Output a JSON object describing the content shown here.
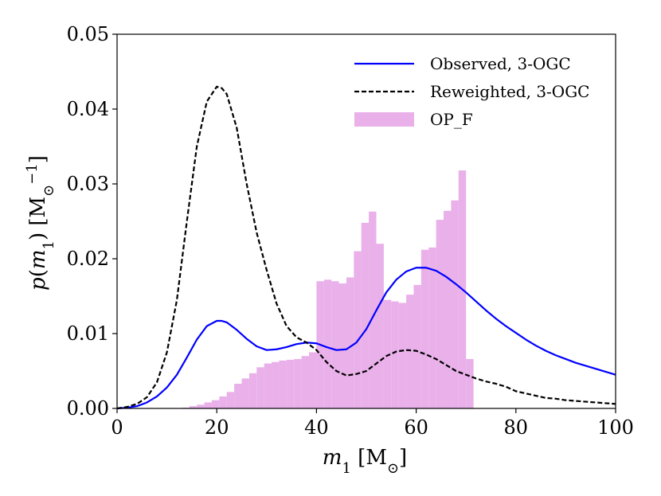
{
  "chart_data": {
    "type": "line",
    "xlabel": "m1 [M⊙]",
    "ylabel": "p(m1) [M⊙^-1]",
    "xlim": [
      0,
      100
    ],
    "ylim": [
      0,
      0.05
    ],
    "xticks": [
      0,
      20,
      40,
      60,
      80,
      100
    ],
    "yticks": [
      0.0,
      0.01,
      0.02,
      0.03,
      0.04,
      0.05
    ],
    "xtick_labels": [
      "0",
      "20",
      "40",
      "60",
      "80",
      "100"
    ],
    "ytick_labels": [
      "0.00",
      "0.01",
      "0.02",
      "0.03",
      "0.04",
      "0.05"
    ],
    "grid": false,
    "legend_position": "top-right",
    "series": [
      {
        "name": "Observed, 3-OGC",
        "type": "line",
        "style": "solid",
        "color": "#0000ff",
        "x": [
          0,
          2,
          4,
          6,
          8,
          10,
          12,
          14,
          16,
          18,
          20,
          21,
          22,
          24,
          26,
          28,
          30,
          32,
          34,
          36,
          38,
          40,
          42,
          44,
          46,
          48,
          50,
          52,
          54,
          56,
          58,
          60,
          62,
          64,
          66,
          68,
          70,
          72,
          74,
          76,
          78,
          80,
          82,
          84,
          86,
          88,
          90,
          92,
          94,
          96,
          98,
          100
        ],
        "y": [
          0.0,
          0.0001,
          0.0003,
          0.0008,
          0.0016,
          0.0028,
          0.0045,
          0.0068,
          0.0092,
          0.011,
          0.0117,
          0.0117,
          0.0115,
          0.0105,
          0.0093,
          0.0083,
          0.0078,
          0.0079,
          0.0082,
          0.0086,
          0.0088,
          0.0087,
          0.0082,
          0.0078,
          0.0079,
          0.0088,
          0.0106,
          0.0131,
          0.0155,
          0.0172,
          0.0183,
          0.0188,
          0.0188,
          0.0184,
          0.0176,
          0.0166,
          0.0155,
          0.0143,
          0.0131,
          0.012,
          0.011,
          0.0101,
          0.0092,
          0.0084,
          0.0077,
          0.0071,
          0.0066,
          0.0061,
          0.0057,
          0.0053,
          0.0049,
          0.0045
        ]
      },
      {
        "name": "Reweighted, 3-OGC",
        "type": "line",
        "style": "dashed",
        "color": "#000000",
        "x": [
          0,
          2,
          4,
          6,
          8,
          10,
          12,
          14,
          16,
          18,
          20,
          21,
          22,
          24,
          26,
          28,
          30,
          32,
          34,
          36,
          38,
          40,
          42,
          44,
          46,
          48,
          50,
          52,
          54,
          56,
          58,
          60,
          62,
          64,
          66,
          68,
          70,
          72,
          74,
          76,
          78,
          80,
          82,
          84,
          86,
          88,
          90,
          92,
          94,
          96,
          98,
          100
        ],
        "y": [
          0.0,
          0.0002,
          0.0006,
          0.0015,
          0.0035,
          0.0075,
          0.0145,
          0.025,
          0.035,
          0.041,
          0.043,
          0.0428,
          0.042,
          0.0375,
          0.03,
          0.0235,
          0.0185,
          0.014,
          0.011,
          0.0095,
          0.0088,
          0.0078,
          0.0062,
          0.005,
          0.0044,
          0.0046,
          0.005,
          0.006,
          0.007,
          0.0076,
          0.0078,
          0.0077,
          0.0072,
          0.0066,
          0.0058,
          0.005,
          0.0045,
          0.004,
          0.0036,
          0.0033,
          0.0029,
          0.0023,
          0.002,
          0.0017,
          0.0014,
          0.0013,
          0.0011,
          0.001,
          0.0009,
          0.0008,
          0.0007,
          0.0006
        ]
      },
      {
        "name": "OP_F",
        "type": "histogram",
        "color": "#e9b0e9",
        "bin_width": 1.5,
        "bin_edges_start": 13,
        "values": [
          0.0001,
          0.0003,
          0.0005,
          0.0008,
          0.0011,
          0.0016,
          0.0022,
          0.0033,
          0.004,
          0.0047,
          0.0055,
          0.006,
          0.0062,
          0.0064,
          0.0065,
          0.0066,
          0.007,
          0.0075,
          0.017,
          0.0172,
          0.017,
          0.0167,
          0.0175,
          0.021,
          0.0248,
          0.0263,
          0.022,
          0.0145,
          0.0143,
          0.0141,
          0.0152,
          0.0165,
          0.0212,
          0.0215,
          0.0252,
          0.0264,
          0.0278,
          0.0318,
          0.0066
        ]
      }
    ]
  },
  "axis_text": {
    "x_italic": "m",
    "x_sub": "1",
    "x_unit_open": " [M",
    "x_unit_sub": "⊙",
    "x_unit_close": "]",
    "y_italic": "p",
    "y_open": "(",
    "y_m": "m",
    "y_sub": "1",
    "y_close": ") [M",
    "y_unit_sub": "⊙",
    "y_sup": "−1",
    "y_end": "]"
  }
}
